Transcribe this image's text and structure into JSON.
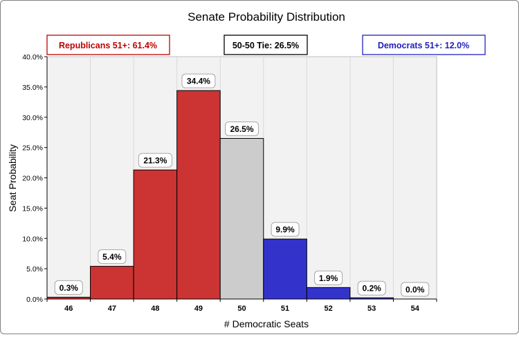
{
  "chart_data": {
    "type": "bar",
    "title": "Senate Probability Distribution",
    "xlabel": "# Democratic Seats",
    "ylabel": "Seat  Probability",
    "categories": [
      "46",
      "47",
      "48",
      "49",
      "50",
      "51",
      "52",
      "53",
      "54"
    ],
    "values": [
      0.3,
      5.4,
      21.3,
      34.4,
      26.5,
      9.9,
      1.9,
      0.2,
      0.0
    ],
    "data_labels": [
      "0.3%",
      "5.4%",
      "21.3%",
      "34.4%",
      "26.5%",
      "9.9%",
      "1.9%",
      "0.2%",
      "0.0%"
    ],
    "bar_colors": [
      "#cc3333",
      "#cc3333",
      "#cc3333",
      "#cc3333",
      "#cccccc",
      "#3333cc",
      "#3333cc",
      "#3333cc",
      "#3333cc"
    ],
    "ylim": [
      0,
      40
    ],
    "yticks": [
      0,
      5,
      10,
      15,
      20,
      25,
      30,
      35,
      40
    ],
    "ytick_labels": [
      "0.0%",
      "5.0%",
      "10.0%",
      "15.0%",
      "20.0%",
      "25.0%",
      "30.0%",
      "35.0%",
      "40.0%"
    ],
    "grid": "vertical",
    "legend_boxes": [
      {
        "label": "Republicans 51+:  61.4%",
        "color": "#c00000"
      },
      {
        "label": "50-50 Tie:  26.5%",
        "color": "#000000"
      },
      {
        "label": "Democrats 51+:  12.0%",
        "color": "#1f1fbf"
      }
    ]
  }
}
